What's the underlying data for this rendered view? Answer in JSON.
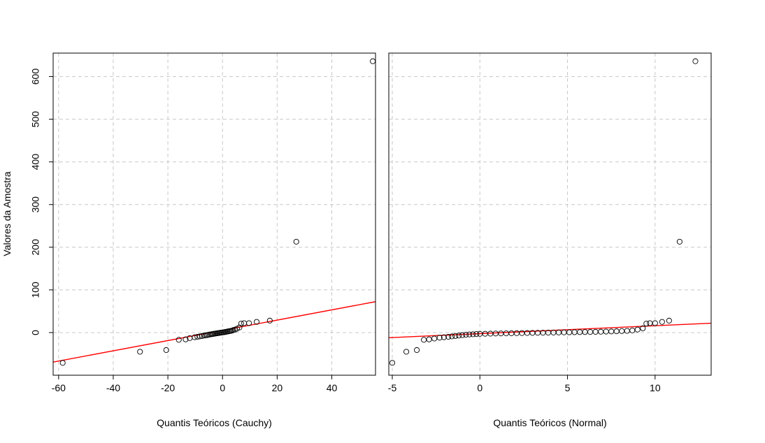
{
  "ylabel": "Valores da Amostra",
  "chart_data": [
    {
      "type": "scatter",
      "xlabel": "Quantis Teóricos (Cauchy)",
      "ylabel": "Valores da Amostra",
      "xlim": [
        -62,
        56
      ],
      "ylim": [
        -100,
        655
      ],
      "x_ticks": [
        -60,
        -40,
        -20,
        0,
        20,
        40
      ],
      "y_ticks": [
        0,
        100,
        200,
        300,
        400,
        500,
        600
      ],
      "grid": true,
      "reference_line": {
        "color": "#ff0000",
        "intercept": 5.2,
        "slope": 1.2
      },
      "points": [
        [
          -58.5,
          -71
        ],
        [
          -30.2,
          -45
        ],
        [
          -20.6,
          -41
        ],
        [
          -16,
          -17
        ],
        [
          -13.5,
          -16
        ],
        [
          -12,
          -13
        ],
        [
          -10.2,
          -11
        ],
        [
          -9.2,
          -10
        ],
        [
          -8.3,
          -9
        ],
        [
          -7.5,
          -8
        ],
        [
          -6.8,
          -7
        ],
        [
          -6.2,
          -6.5
        ],
        [
          -5.6,
          -6
        ],
        [
          -5.1,
          -5
        ],
        [
          -4.6,
          -4.5
        ],
        [
          -4.1,
          -4
        ],
        [
          -3.7,
          -3.5
        ],
        [
          -3.3,
          -3
        ],
        [
          -2.9,
          -2.6
        ],
        [
          -2.5,
          -2.2
        ],
        [
          -2.1,
          -1.8
        ],
        [
          -1.7,
          -1.4
        ],
        [
          -1.3,
          -1
        ],
        [
          -0.9,
          -0.6
        ],
        [
          -0.5,
          -0.2
        ],
        [
          -0.1,
          0.2
        ],
        [
          0.3,
          0.6
        ],
        [
          0.7,
          1
        ],
        [
          1.1,
          1.5
        ],
        [
          1.5,
          2
        ],
        [
          1.9,
          2.5
        ],
        [
          2.3,
          3
        ],
        [
          2.7,
          3.5
        ],
        [
          3.1,
          4
        ],
        [
          3.5,
          4.6
        ],
        [
          4,
          6
        ],
        [
          4.6,
          7
        ],
        [
          5.3,
          9
        ],
        [
          6.2,
          12
        ],
        [
          6.8,
          21
        ],
        [
          7.9,
          22
        ],
        [
          9.7,
          22
        ],
        [
          12.5,
          25
        ],
        [
          17.3,
          28
        ],
        [
          27,
          213
        ],
        [
          55,
          636
        ]
      ]
    },
    {
      "type": "scatter",
      "xlabel": "Quantis Teóricos (Normal)",
      "ylabel": "",
      "xlim": [
        -5.2,
        13.2
      ],
      "ylim": [
        -100,
        655
      ],
      "x_ticks": [
        -5,
        0,
        5,
        10
      ],
      "y_ticks": [
        0,
        100,
        200,
        300,
        400,
        500,
        600
      ],
      "grid": true,
      "reference_line": {
        "color": "#ff0000",
        "intercept": -2.5,
        "slope": 1.85
      },
      "points": [
        [
          -5,
          -71
        ],
        [
          -4.2,
          -45
        ],
        [
          -3.6,
          -41
        ],
        [
          -3.2,
          -17
        ],
        [
          -2.9,
          -16
        ],
        [
          -2.6,
          -14
        ],
        [
          -2.3,
          -12
        ],
        [
          -2.05,
          -11
        ],
        [
          -1.8,
          -10
        ],
        [
          -1.6,
          -9
        ],
        [
          -1.4,
          -8
        ],
        [
          -1.2,
          -7
        ],
        [
          -1,
          -6
        ],
        [
          -0.8,
          -5
        ],
        [
          -0.6,
          -4.5
        ],
        [
          -0.4,
          -4
        ],
        [
          -0.2,
          -3.5
        ],
        [
          0,
          -3
        ],
        [
          0.3,
          -2.8
        ],
        [
          0.6,
          -2.5
        ],
        [
          0.9,
          -2.2
        ],
        [
          1.2,
          -2
        ],
        [
          1.5,
          -1.8
        ],
        [
          1.8,
          -1.6
        ],
        [
          2.1,
          -1.4
        ],
        [
          2.4,
          -1.2
        ],
        [
          2.7,
          -1
        ],
        [
          3,
          -0.8
        ],
        [
          3.3,
          -0.6
        ],
        [
          3.6,
          -0.4
        ],
        [
          3.9,
          -0.2
        ],
        [
          4.2,
          0
        ],
        [
          4.5,
          0.2
        ],
        [
          4.8,
          0.4
        ],
        [
          5.1,
          0.6
        ],
        [
          5.4,
          0.8
        ],
        [
          5.7,
          1
        ],
        [
          6,
          1.2
        ],
        [
          6.3,
          1.4
        ],
        [
          6.6,
          1.7
        ],
        [
          6.9,
          2
        ],
        [
          7.2,
          2.3
        ],
        [
          7.5,
          2.6
        ],
        [
          7.8,
          3
        ],
        [
          8.1,
          3.5
        ],
        [
          8.4,
          4
        ],
        [
          8.7,
          5
        ],
        [
          9,
          7
        ],
        [
          9.3,
          10
        ],
        [
          9.5,
          21
        ],
        [
          9.7,
          22
        ],
        [
          10,
          22
        ],
        [
          10.4,
          25
        ],
        [
          10.8,
          28
        ],
        [
          11.4,
          213
        ],
        [
          12.3,
          636
        ]
      ]
    }
  ]
}
